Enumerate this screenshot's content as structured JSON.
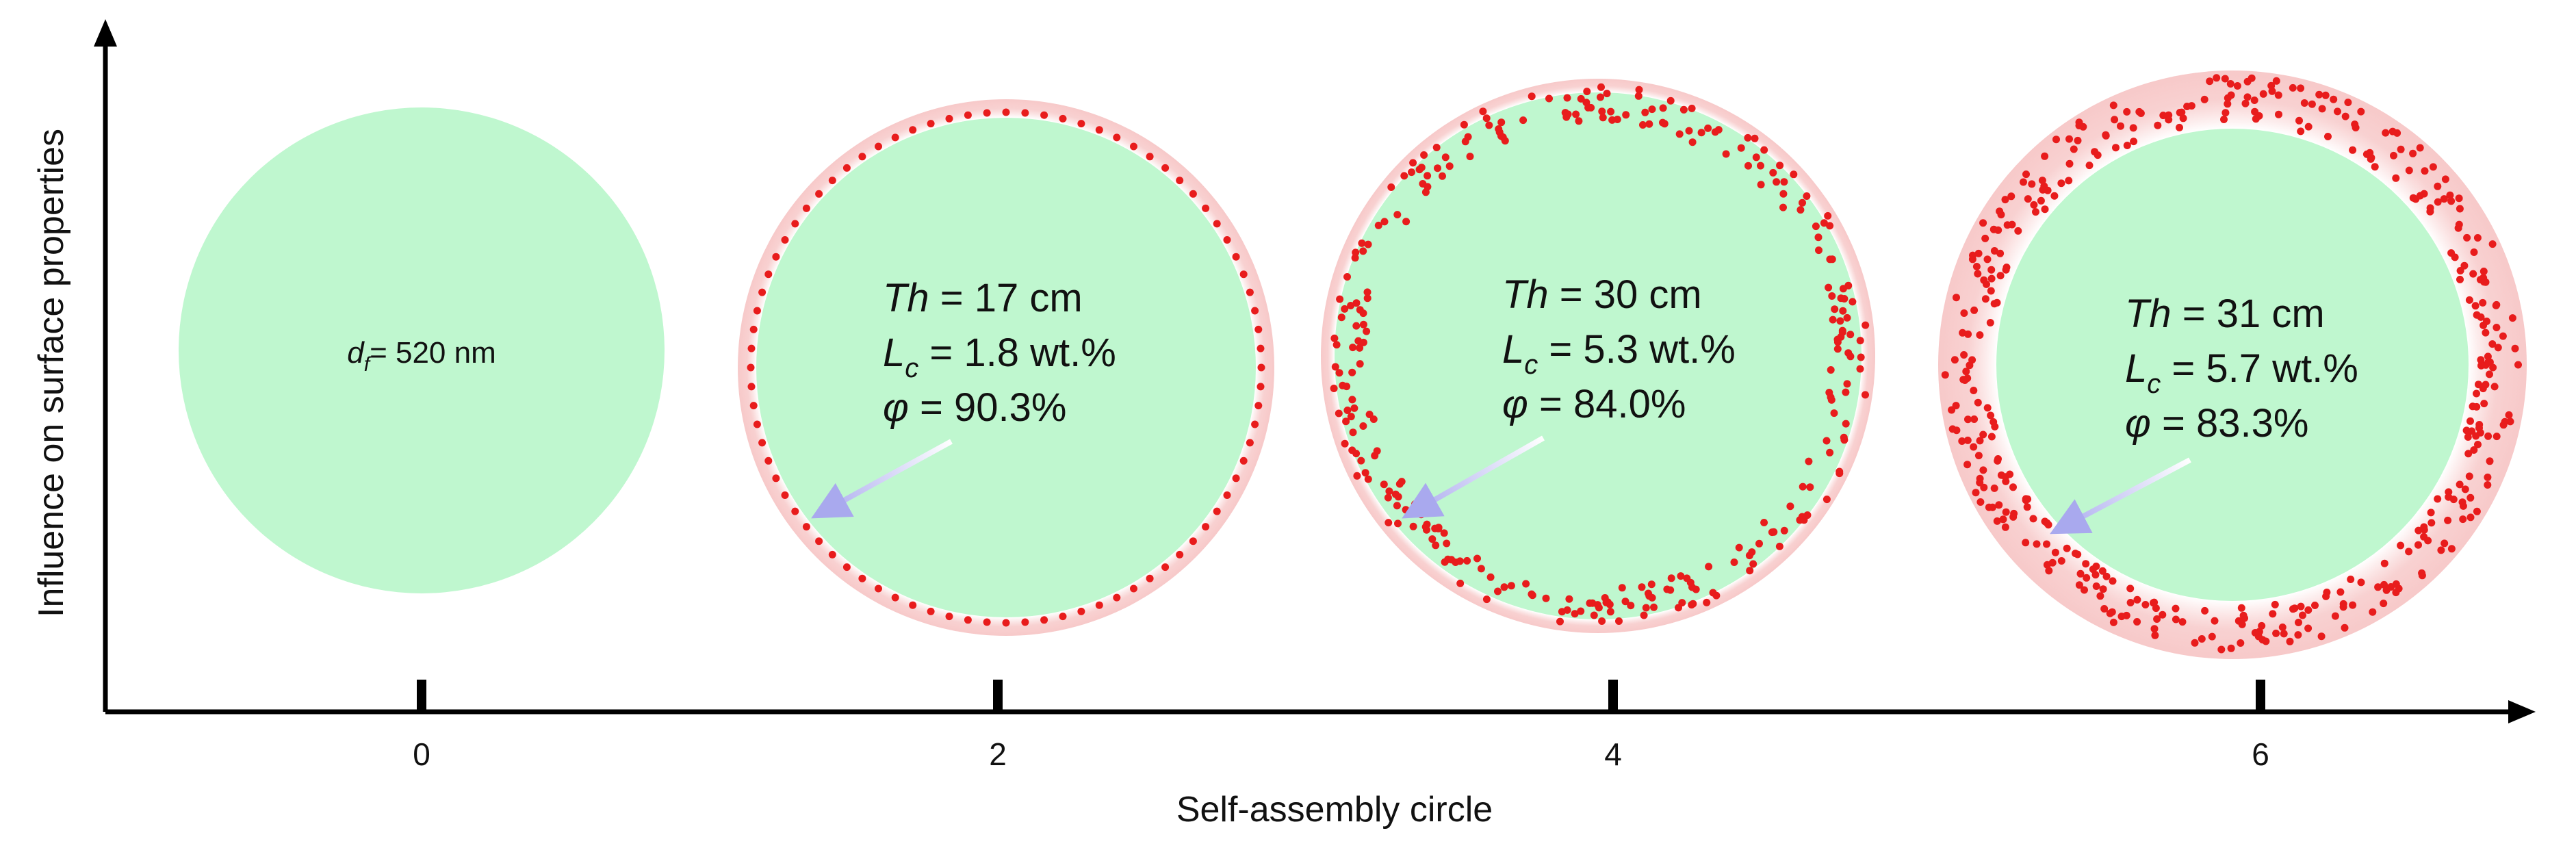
{
  "axes": {
    "x_title": "Self-assembly circle",
    "y_title": "Influence on surface properties",
    "ticks": [
      "0",
      "2",
      "4",
      "6"
    ]
  },
  "colors": {
    "fiber": "#bff7cf",
    "halo_outer": "#f7c9c9",
    "halo_inner": "#ffffff",
    "particle": "#e81c1c",
    "arrow": "#a9a9ee",
    "axis": "#000000"
  },
  "stages": [
    {
      "tick": "0",
      "particles": 0,
      "lines": [
        {
          "sym": "d",
          "sub": "f",
          "text": "= 520 nm"
        }
      ]
    },
    {
      "tick": "2",
      "particles": 84,
      "lines": [
        {
          "sym": "Th",
          "sub": "",
          "text": " = 17 cm"
        },
        {
          "sym": "L",
          "sub": "c",
          "text": " = 1.8 wt.%"
        },
        {
          "sym": "φ",
          "sub": "",
          "text": " = 90.3%"
        }
      ]
    },
    {
      "tick": "4",
      "particles": 300,
      "lines": [
        {
          "sym": "Th",
          "sub": "",
          "text": " = 30 cm"
        },
        {
          "sym": "L",
          "sub": "c",
          "text": " = 5.3 wt.%"
        },
        {
          "sym": "φ",
          "sub": "",
          "text": " = 84.0%"
        }
      ]
    },
    {
      "tick": "6",
      "particles": 420,
      "lines": [
        {
          "sym": "Th",
          "sub": "",
          "text": " = 31 cm"
        },
        {
          "sym": "L",
          "sub": "c",
          "text": " = 5.7 wt.%"
        },
        {
          "sym": "φ",
          "sub": "",
          "text": " = 83.3%"
        }
      ]
    }
  ]
}
